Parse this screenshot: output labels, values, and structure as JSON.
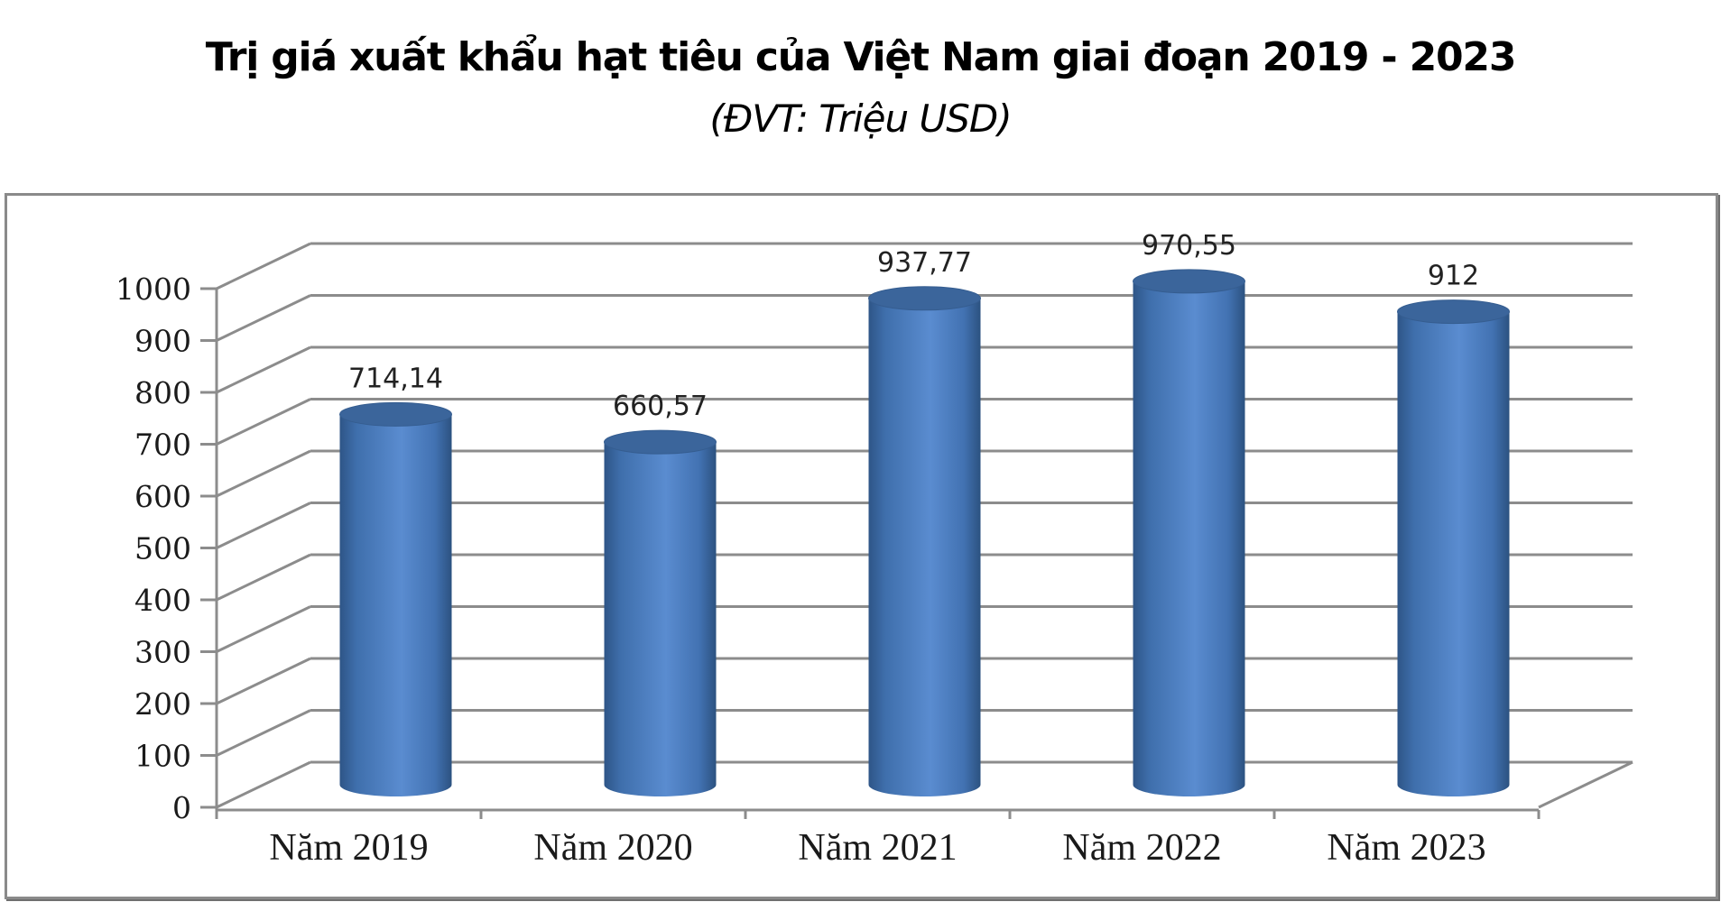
{
  "chart_data": {
    "type": "bar",
    "style": "3d-cylinder",
    "title": "Trị giá xuất khẩu hạt tiêu của Việt Nam giai đoạn 2019 - 2023",
    "subtitle": "(ĐVT: Triệu USD)",
    "xlabel": "",
    "ylabel": "",
    "categories": [
      "Năm 2019",
      "Năm 2020",
      "Năm 2021",
      "Năm 2022",
      "Năm 2023"
    ],
    "values": [
      714.14,
      660.57,
      937.77,
      970.55,
      912
    ],
    "data_labels": [
      "714,14",
      "660,57",
      "937,77",
      "970,55",
      "912"
    ],
    "ylim": [
      0,
      1000
    ],
    "yticks": [
      0,
      100,
      200,
      300,
      400,
      500,
      600,
      700,
      800,
      900,
      1000
    ],
    "grid": true,
    "legend": null,
    "colors": {
      "bar": "#4a7ebf",
      "bar_dark": "#2f5a8f",
      "bar_light": "#5b8fd3",
      "bar_top": "#3b659b",
      "grid": "#8c8c8c",
      "frame": "#8a8a8a"
    }
  },
  "header": {
    "title": "Trị giá xuất khẩu hạt tiêu của Việt Nam giai đoạn 2019 - 2023",
    "subtitle": "(ĐVT: Triệu USD)"
  }
}
